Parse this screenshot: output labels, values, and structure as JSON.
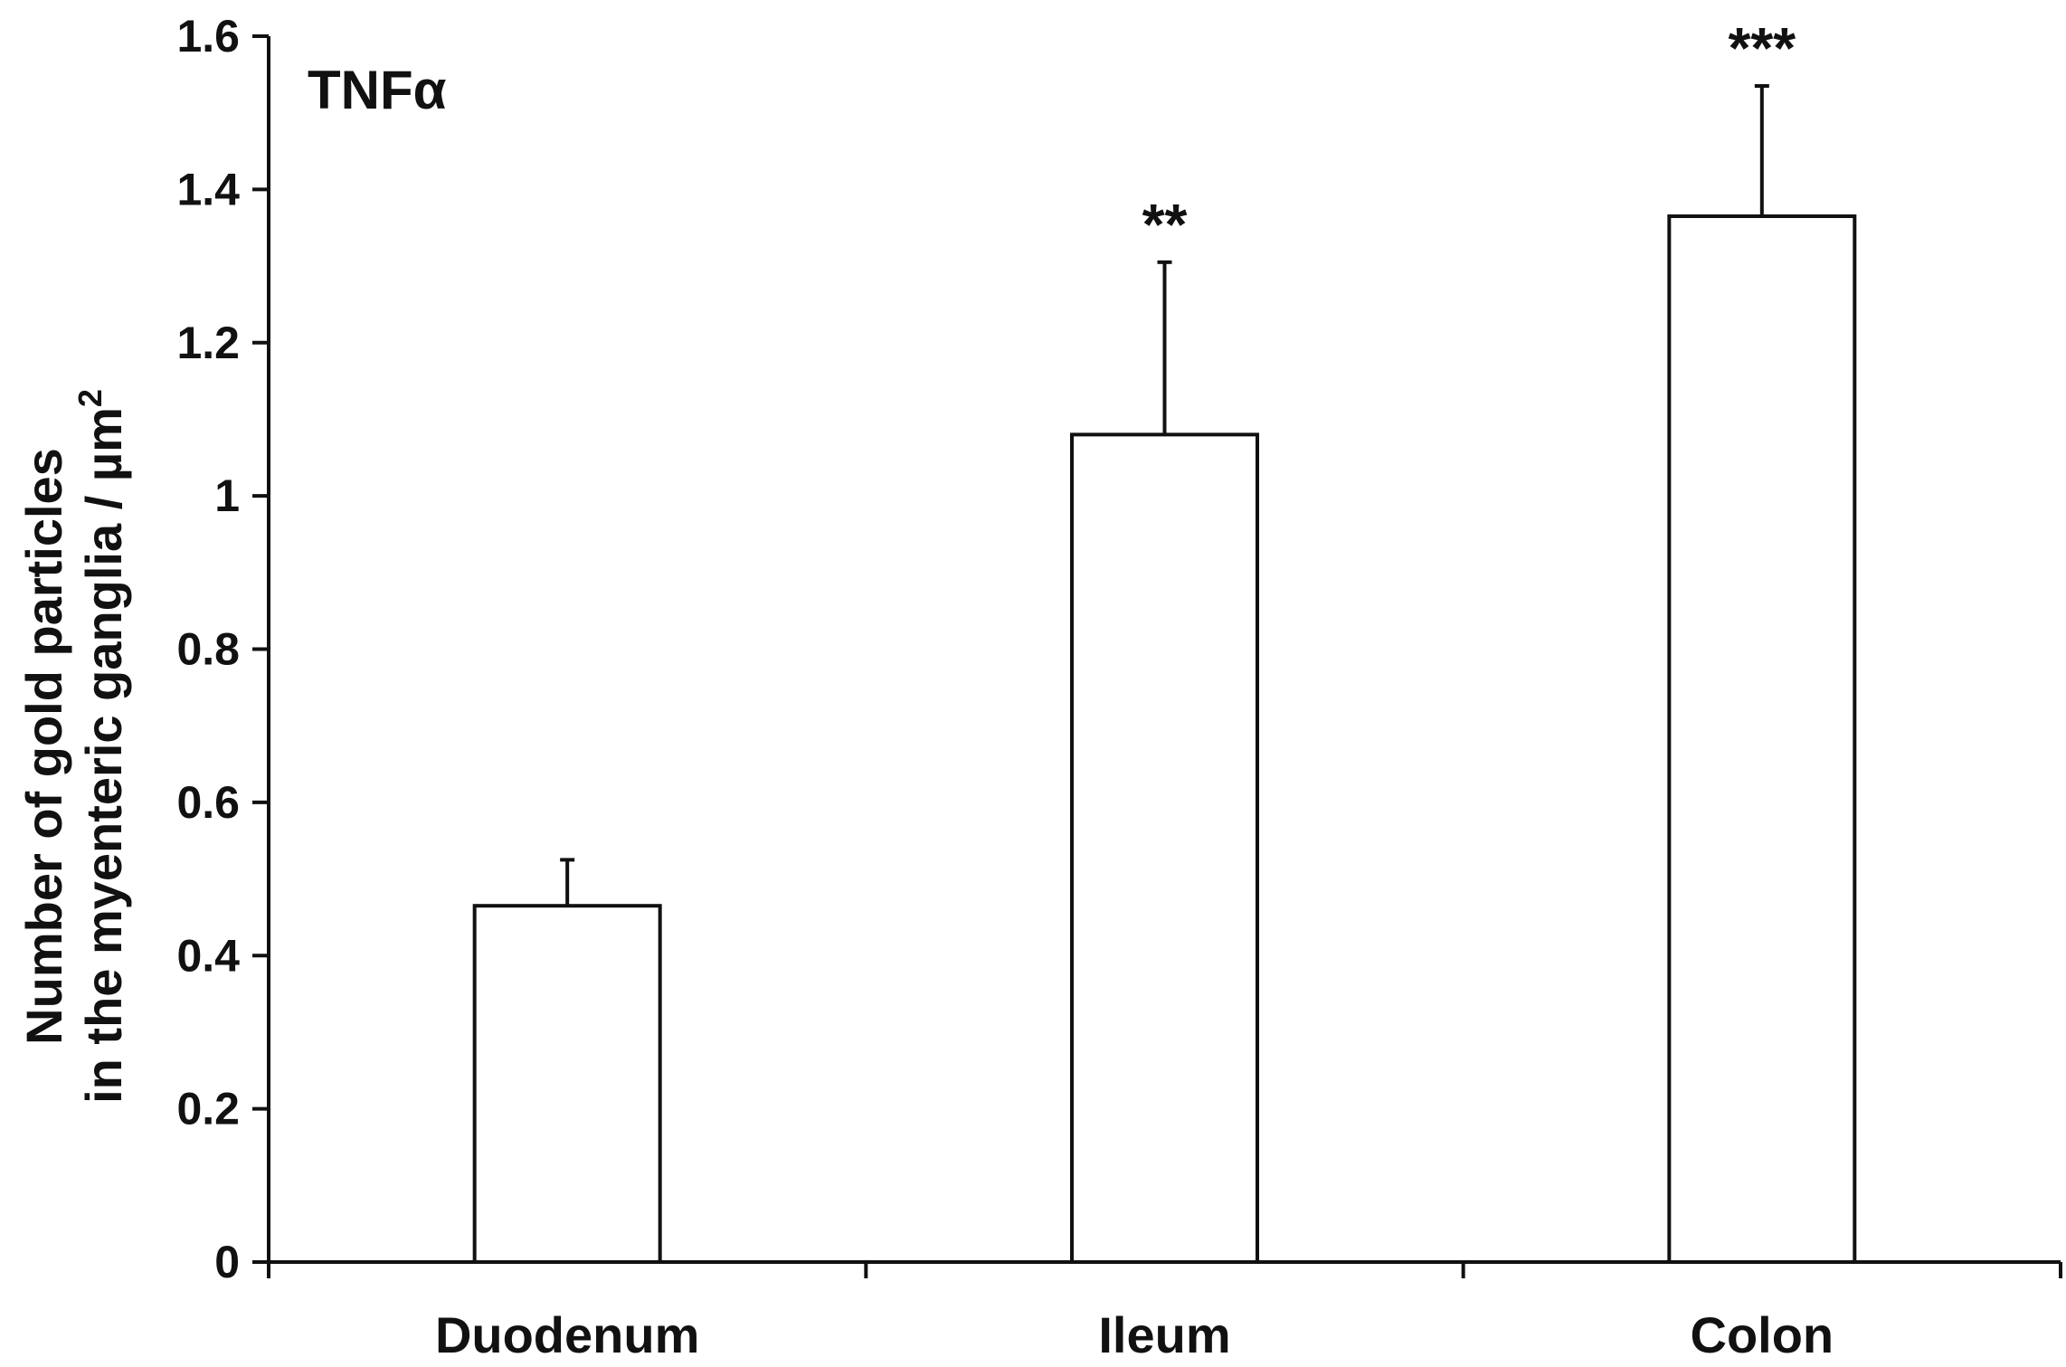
{
  "chart_data": {
    "type": "bar",
    "panel_label": "TNFα",
    "categories": [
      "Duodenum",
      "Ileum",
      "Colon"
    ],
    "values": [
      0.465,
      1.08,
      1.365
    ],
    "error_upper": [
      0.525,
      1.305,
      1.535
    ],
    "significance": [
      "",
      "**",
      "***"
    ],
    "ylabel_line1": "Number of gold particles",
    "ylabel_line2_prefix": "in the myenteric ganglia / µm",
    "ylabel_superscript": "2",
    "ylim": [
      0,
      1.6
    ],
    "yticks": [
      0,
      0.2,
      0.4,
      0.6,
      0.8,
      1,
      1.2,
      1.4,
      1.6
    ],
    "ytick_labels": [
      "0",
      "0.2",
      "0.4",
      "0.6",
      "0.8",
      "1",
      "1.2",
      "1.4",
      "1.6"
    ],
    "bar_fill": "#ffffff",
    "bar_stroke": "#111111",
    "axis_color": "#111111",
    "grid": false,
    "legend": "none"
  }
}
